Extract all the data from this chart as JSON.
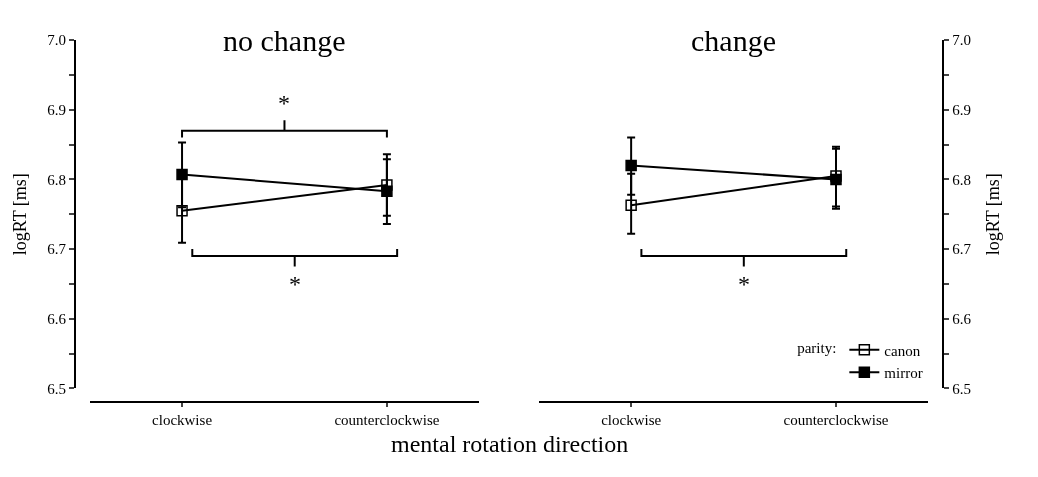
{
  "chart_data": [
    {
      "type": "line",
      "title": "no change",
      "ylabel": "logRT [ms]",
      "xlabel": "mental rotation direction",
      "categories": [
        "clockwise",
        "counterclockwise"
      ],
      "series": [
        {
          "color": "#000000",
          "values": [
            6.755,
            6.792
          ],
          "errors": [
            [
              6.709,
              6.802
            ],
            [
              6.748,
              6.836
            ]
          ]
        },
        {
          "color": "#000000",
          "values": [
            6.807,
            6.783
          ],
          "errors": [
            [
              6.76,
              6.853
            ],
            [
              6.736,
              6.829
            ]
          ]
        }
      ],
      "ylim": [
        6.5,
        7.0
      ],
      "yticks": [
        6.5,
        {
          "value": 6.55,
          "label": null
        },
        6.6,
        {
          "value": 6.65,
          "label": null
        },
        6.7,
        {
          "value": 6.75,
          "label": null
        },
        6.8,
        {
          "value": 6.85,
          "label": null
        },
        6.9,
        {
          "value": 6.95,
          "label": null
        },
        "7.0"
      ],
      "marker": "square",
      "grid": false,
      "annotations": [
        "*",
        "*"
      ]
    },
    {
      "type": "line",
      "title": "change",
      "ylabel": "logRT [ms]",
      "legend_title": "parity:",
      "categories": [
        "clockwise",
        "counterclockwise"
      ],
      "series": [
        {
          "name": "canon",
          "color": "#000000",
          "values": [
            6.763,
            6.805
          ],
          "errors": [
            [
              6.722,
              6.808
            ],
            [
              6.761,
              6.847
            ]
          ]
        },
        {
          "name": "mirror",
          "color": "#000000",
          "values": [
            6.82,
            6.8
          ],
          "errors": [
            [
              6.778,
              6.86
            ],
            [
              6.758,
              6.844
            ]
          ]
        }
      ],
      "ylim": [
        6.5,
        7.0
      ],
      "yticks": [
        6.5,
        {
          "value": 6.55,
          "label": null
        },
        6.6,
        {
          "value": 6.65,
          "label": null
        },
        6.7,
        {
          "value": 6.75,
          "label": null
        },
        6.8,
        {
          "value": 6.85,
          "label": null
        },
        6.9,
        {
          "value": 6.95,
          "label": null
        },
        "7.0"
      ],
      "marker": "square",
      "grid": false,
      "legend": "bottom right",
      "annotations": [
        "*"
      ]
    }
  ]
}
